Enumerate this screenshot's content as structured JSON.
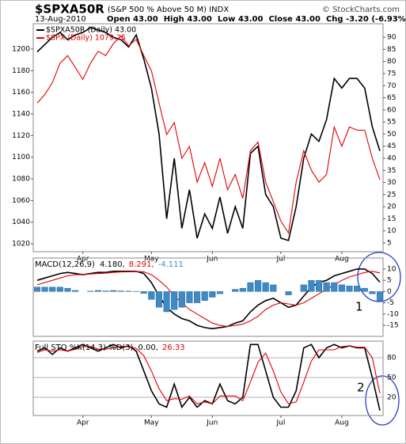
{
  "chart_data": [
    {
      "type": "line",
      "title": "$SPXA50R",
      "subtitle": "(S&P 500 % Above 50 M) INDX",
      "credit": "© StockCharts.com",
      "date": "13-Aug-2010",
      "quote": [
        "Open 43.00",
        "High 43.00",
        "Low 43.00",
        "Close 43.00",
        "Chg -3.20 (-6.93%)"
      ],
      "legend": "upper left",
      "categories": [
        null,
        null,
        null,
        null,
        null,
        null,
        "Apr",
        null,
        null,
        null,
        null,
        null,
        null,
        null,
        null,
        "May",
        null,
        null,
        null,
        null,
        null,
        null,
        null,
        "Jun",
        null,
        null,
        null,
        null,
        null,
        null,
        null,
        null,
        "Jul",
        null,
        null,
        null,
        null,
        null,
        null,
        null,
        "Aug",
        null,
        null,
        null,
        null,
        null
      ],
      "ylim": [
        1012.7,
        1223.4
      ],
      "yticks": [
        1020,
        1040,
        1060,
        1080,
        1100,
        1120,
        1140,
        1160,
        1180,
        1200
      ],
      "y2lim": [
        1.4,
        95.6
      ],
      "y2ticks": [
        5,
        10,
        15,
        20,
        25,
        30,
        35,
        40,
        45,
        50,
        55,
        60,
        65,
        70,
        75,
        80,
        85,
        90
      ],
      "series": [
        {
          "name": "$SPXA50R (Daily) 43.00",
          "color": "#000000",
          "axis": "y2",
          "values": [
            84,
            87,
            90,
            92,
            89,
            91,
            92,
            94,
            93,
            92,
            90,
            89,
            86,
            91,
            81,
            69,
            50,
            15,
            40,
            11,
            27,
            7,
            17,
            11,
            24,
            9,
            20,
            11,
            42,
            45,
            25,
            20,
            7,
            6,
            20,
            40,
            50,
            47,
            56,
            73,
            69,
            73,
            73,
            69,
            53,
            43
          ]
        },
        {
          "name": "$SPX (Daily) 1079.25",
          "color": "#e00000",
          "values": [
            1150,
            1158,
            1169,
            1187,
            1194,
            1183,
            1172,
            1187,
            1198,
            1194,
            1205,
            1212,
            1203,
            1209,
            1194,
            1180,
            1150,
            1121,
            1132,
            1099,
            1110,
            1077,
            1095,
            1073,
            1099,
            1070,
            1084,
            1062,
            1106,
            1114,
            1077,
            1059,
            1041,
            1030,
            1077,
            1106,
            1088,
            1077,
            1084,
            1128,
            1110,
            1128,
            1125,
            1125,
            1099,
            1079.25
          ]
        }
      ]
    },
    {
      "type": "line",
      "title": "MACD(12,26,9)",
      "legend": "top",
      "annotation": "1",
      "y2lim": [
        -19.9,
        14.9
      ],
      "y2ticks": [
        10,
        5,
        0,
        -5,
        -10,
        -15
      ],
      "series": [
        {
          "name": "4.180,",
          "color": "#000000",
          "axis": "y2",
          "values": [
            5,
            6,
            7,
            8,
            8.5,
            8,
            7.5,
            8,
            8.5,
            8.5,
            9,
            9,
            9,
            9,
            8,
            4,
            -2,
            -7,
            -10,
            -12,
            -13,
            -15,
            -16,
            -16.5,
            -16,
            -15.5,
            -14,
            -13,
            -9,
            -6,
            -4,
            -3,
            -5,
            -7,
            -6,
            -2,
            2,
            4,
            5,
            7,
            8,
            9,
            10,
            10,
            8,
            4.18
          ]
        },
        {
          "name": "8.291,",
          "color": "#e00000",
          "axis": "y2",
          "values": [
            3,
            4,
            5,
            6,
            7,
            7.5,
            7.5,
            7.8,
            8,
            8.2,
            8.5,
            8.7,
            8.8,
            8.9,
            8.8,
            7.5,
            5,
            2,
            -2,
            -5,
            -8,
            -10,
            -12,
            -14,
            -15,
            -15.5,
            -15,
            -14.5,
            -13,
            -11,
            -8,
            -6,
            -5,
            -5.5,
            -6,
            -5,
            -3,
            -1,
            1,
            3,
            5,
            6.5,
            7.5,
            8.5,
            9,
            8.291
          ]
        },
        {
          "name": "-4.111",
          "color": "#3d8ac4",
          "axis": "y2",
          "type": "bar",
          "values": [
            2,
            2,
            2,
            2,
            1.5,
            0.5,
            0,
            0.2,
            0.5,
            0.3,
            0.5,
            0.3,
            0.2,
            0.1,
            -0.8,
            -3.5,
            -7,
            -9,
            -8,
            -7,
            -5,
            -5,
            -4,
            -2.5,
            -1,
            0,
            1,
            1.5,
            4,
            5,
            4,
            3,
            0,
            -1.5,
            0,
            3,
            5,
            5,
            4,
            4,
            3,
            2.5,
            2.5,
            1.5,
            -1,
            -4.111
          ]
        }
      ]
    },
    {
      "type": "line",
      "title": "Full STO %K(14,3) %D(3)",
      "legend": "top",
      "annotation": "2",
      "grid": true,
      "categories": [
        null,
        null,
        null,
        null,
        null,
        null,
        "Apr",
        null,
        null,
        null,
        null,
        null,
        null,
        null,
        null,
        "May",
        null,
        null,
        null,
        null,
        null,
        null,
        null,
        "Jun",
        null,
        null,
        null,
        null,
        null,
        null,
        null,
        null,
        "Jul",
        null,
        null,
        null,
        null,
        null,
        null,
        null,
        "Aug",
        null,
        null,
        null,
        null,
        null
      ],
      "y2lim": [
        -7.6,
        105.2
      ],
      "y2ticks": [
        80,
        50,
        20
      ],
      "series": [
        {
          "name": "0.00,",
          "color": "#000000",
          "axis": "y2",
          "values": [
            90,
            95,
            85,
            95,
            90,
            95,
            100,
            95,
            90,
            95,
            100,
            95,
            98,
            90,
            60,
            30,
            10,
            5,
            40,
            5,
            20,
            5,
            15,
            10,
            40,
            15,
            10,
            20,
            100,
            100,
            60,
            20,
            5,
            5,
            30,
            95,
            100,
            80,
            95,
            100,
            95,
            98,
            95,
            95,
            50,
            0
          ]
        },
        {
          "name": "26.33",
          "color": "#e00000",
          "axis": "y2",
          "values": [
            88,
            92,
            90,
            92,
            90,
            93,
            97,
            97,
            93,
            93,
            95,
            97,
            97,
            94,
            83,
            60,
            33,
            15,
            18,
            17,
            22,
            10,
            13,
            10,
            22,
            22,
            22,
            15,
            43,
            73,
            87,
            60,
            28,
            10,
            13,
            43,
            75,
            92,
            92,
            92,
            97,
            98,
            96,
            96,
            80,
            26.33
          ]
        }
      ]
    }
  ]
}
